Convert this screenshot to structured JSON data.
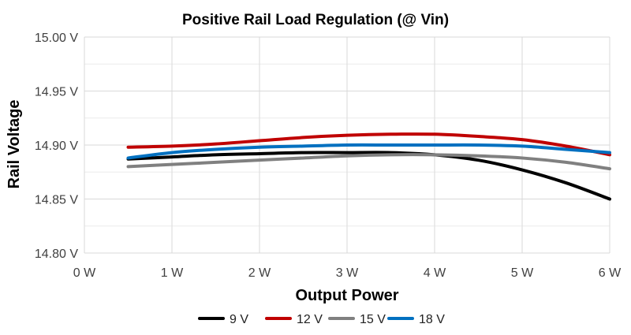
{
  "chart_data": {
    "type": "line",
    "title": "Positive Rail Load Regulation (@ Vin)",
    "xlabel": "Output Power",
    "ylabel": "Rail Voltage",
    "xlim": [
      0,
      6
    ],
    "ylim": [
      14.8,
      15.0
    ],
    "x_ticks": [
      "0 W",
      "1 W",
      "2 W",
      "3 W",
      "4 W",
      "5 W",
      "6 W"
    ],
    "y_ticks": [
      "14.80 V",
      "14.85 V",
      "14.90 V",
      "14.95 V",
      "15.00 V"
    ],
    "grid": true,
    "legend_position": "bottom",
    "series": [
      {
        "name": "9 V",
        "color": "#000000",
        "x": [
          0.5,
          1,
          1.5,
          2,
          2.5,
          3,
          3.5,
          4,
          4.5,
          5,
          5.5,
          6
        ],
        "y": [
          14.887,
          14.889,
          14.891,
          14.892,
          14.893,
          14.893,
          14.893,
          14.891,
          14.886,
          14.877,
          14.865,
          14.85
        ]
      },
      {
        "name": "12 V",
        "color": "#c00000",
        "x": [
          0.5,
          1,
          1.5,
          2,
          2.5,
          3,
          3.5,
          4,
          4.5,
          5,
          5.5,
          6
        ],
        "y": [
          14.898,
          14.899,
          14.901,
          14.904,
          14.907,
          14.909,
          14.91,
          14.91,
          14.908,
          14.905,
          14.899,
          14.891
        ]
      },
      {
        "name": "15 V",
        "color": "#808080",
        "x": [
          0.5,
          1,
          1.5,
          2,
          2.5,
          3,
          3.5,
          4,
          4.5,
          5,
          5.5,
          6
        ],
        "y": [
          14.88,
          14.882,
          14.884,
          14.886,
          14.888,
          14.89,
          14.891,
          14.891,
          14.89,
          14.888,
          14.884,
          14.878
        ]
      },
      {
        "name": "18 V",
        "color": "#0070c0",
        "x": [
          0.5,
          1,
          1.5,
          2,
          2.5,
          3,
          3.5,
          4,
          4.5,
          5,
          5.5,
          6
        ],
        "y": [
          14.888,
          14.893,
          14.896,
          14.898,
          14.899,
          14.9,
          14.9,
          14.9,
          14.9,
          14.899,
          14.896,
          14.893
        ]
      }
    ]
  }
}
